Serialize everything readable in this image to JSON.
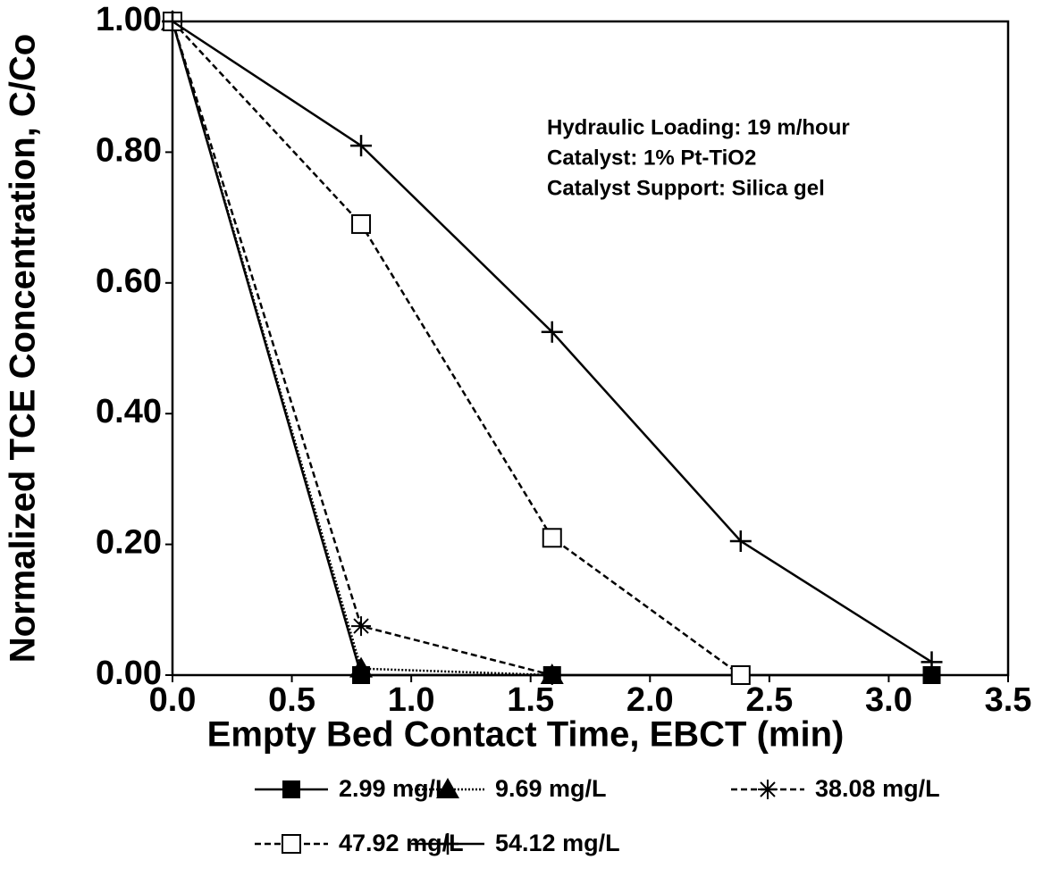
{
  "chart_data": {
    "type": "line",
    "xlabel": "Empty Bed Contact Time, EBCT (min)",
    "ylabel": "Normalized TCE Concentration, C/Co",
    "annotations": [
      "Hydraulic Loading: 19 m/hour",
      "Catalyst: 1% Pt-TiO2",
      "Catalyst Support: Silica gel"
    ],
    "xlim": [
      0,
      3.5
    ],
    "ylim": [
      0,
      1
    ],
    "xticks": [
      {
        "value": 0,
        "label": "0.0"
      },
      0.5,
      {
        "value": 1,
        "label": "1.0"
      },
      1.5,
      {
        "value": 2,
        "label": "2.0"
      },
      2.5,
      {
        "value": 3,
        "label": "3.0"
      },
      3.5
    ],
    "yticks": [
      {
        "value": 0,
        "label": "0.00"
      },
      {
        "value": 0.2,
        "label": "0.20"
      },
      {
        "value": 0.4,
        "label": "0.40"
      },
      {
        "value": 0.6,
        "label": "0.60"
      },
      {
        "value": 0.8,
        "label": "0.80"
      },
      {
        "value": 1,
        "label": "1.00"
      }
    ],
    "series": [
      {
        "name": "2.99 mg/L",
        "color": "#000000",
        "marker": "filled-square",
        "dash": "solid",
        "x": [
          0,
          0.79,
          1.59,
          2.38,
          3.18
        ],
        "values": [
          1,
          0,
          0,
          0,
          0
        ]
      },
      {
        "name": "9.69 mg/L",
        "color": "#000000",
        "marker": "filled-triangle",
        "dash": "dotted",
        "x": [
          0,
          0.79,
          1.59
        ],
        "values": [
          1,
          0.01,
          0
        ]
      },
      {
        "name": "38.08 mg/L",
        "color": "#000000",
        "marker": "asterisk",
        "dash": "dashed",
        "x": [
          0,
          0.79,
          1.59
        ],
        "values": [
          1,
          0.075,
          0
        ]
      },
      {
        "name": "47.92 mg/L",
        "color": "#000000",
        "marker": "open-square",
        "dash": "dashed",
        "x": [
          0,
          0.79,
          1.59,
          2.38
        ],
        "values": [
          1,
          0.69,
          0.21,
          0
        ]
      },
      {
        "name": "54.12 mg/L",
        "color": "#000000",
        "marker": "plus",
        "dash": "solid",
        "x": [
          0,
          0.79,
          1.59,
          2.38,
          3.18
        ],
        "values": [
          1,
          0.81,
          0.525,
          0.205,
          0.02
        ]
      }
    ]
  }
}
